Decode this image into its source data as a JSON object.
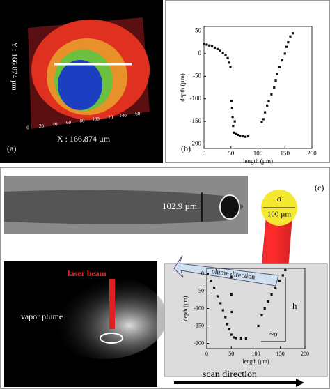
{
  "panel_a": {
    "label": "(a)",
    "x_axis": "X : 166.874 µm",
    "y_axis": "Y : 166.874 µm",
    "x_ticks": [
      "0",
      "20",
      "40",
      "60",
      "80",
      "100",
      "120",
      "140",
      "160"
    ]
  },
  "panel_b": {
    "label": "(b)"
  },
  "panel_c": {
    "label": "(c)",
    "width_label": "102.9 µm",
    "sigma": "σ",
    "spot_size": "100 µm",
    "laser_beam": "laser beam",
    "vapor_plume": "vapor plume",
    "plume_direction": "plume direction",
    "h": "h",
    "approx_sigma": "~σ",
    "scan_direction": "scan direction"
  },
  "chart_data": [
    {
      "type": "scatter",
      "x_label": "length (µm)",
      "y_label": "depth (µm)",
      "color": "#111111",
      "xlim": [
        0,
        200
      ],
      "ylim": [
        -210,
        60
      ],
      "xticks": [
        0,
        50,
        100,
        150,
        200
      ],
      "yticks": [
        50,
        0,
        -50,
        -100,
        -150,
        -200
      ],
      "x": [
        0,
        5,
        10,
        15,
        20,
        25,
        30,
        35,
        40,
        44,
        47,
        49,
        51,
        52,
        53,
        54,
        55,
        57,
        60,
        63,
        67,
        72,
        77,
        82,
        107,
        110,
        113,
        117,
        120,
        125,
        130,
        133,
        136,
        140,
        145,
        150,
        153,
        156,
        160,
        165
      ],
      "values": [
        22,
        20,
        18,
        16,
        13,
        10,
        6,
        2,
        -3,
        -10,
        -20,
        -30,
        -105,
        -120,
        -140,
        -160,
        -175,
        -150,
        -178,
        -180,
        -182,
        -183,
        -184,
        -183,
        -152,
        -145,
        -130,
        -115,
        -105,
        -90,
        -75,
        -60,
        -45,
        -30,
        -15,
        0,
        15,
        25,
        38,
        45
      ]
    },
    {
      "type": "scatter",
      "x_label": "length (µm)",
      "y_label": "depth (µm)",
      "color": "#111111",
      "xlim": [
        0,
        200
      ],
      "ylim": [
        -215,
        15
      ],
      "xticks": [
        0,
        50,
        100,
        150,
        200
      ],
      "yticks": [
        0,
        -50,
        -100,
        -150,
        -200
      ],
      "x": [
        2,
        8,
        15,
        22,
        28,
        33,
        38,
        42,
        46,
        50,
        50,
        50,
        51,
        55,
        60,
        70,
        80,
        105,
        112,
        118,
        125,
        132,
        140,
        148,
        155,
        160
      ],
      "values": [
        -2,
        -20,
        -40,
        -65,
        -85,
        -105,
        -125,
        -145,
        -160,
        -175,
        -10,
        -60,
        -110,
        -183,
        -185,
        -186,
        -186,
        -150,
        -120,
        -100,
        -80,
        -60,
        -40,
        -20,
        -5,
        10
      ]
    }
  ]
}
